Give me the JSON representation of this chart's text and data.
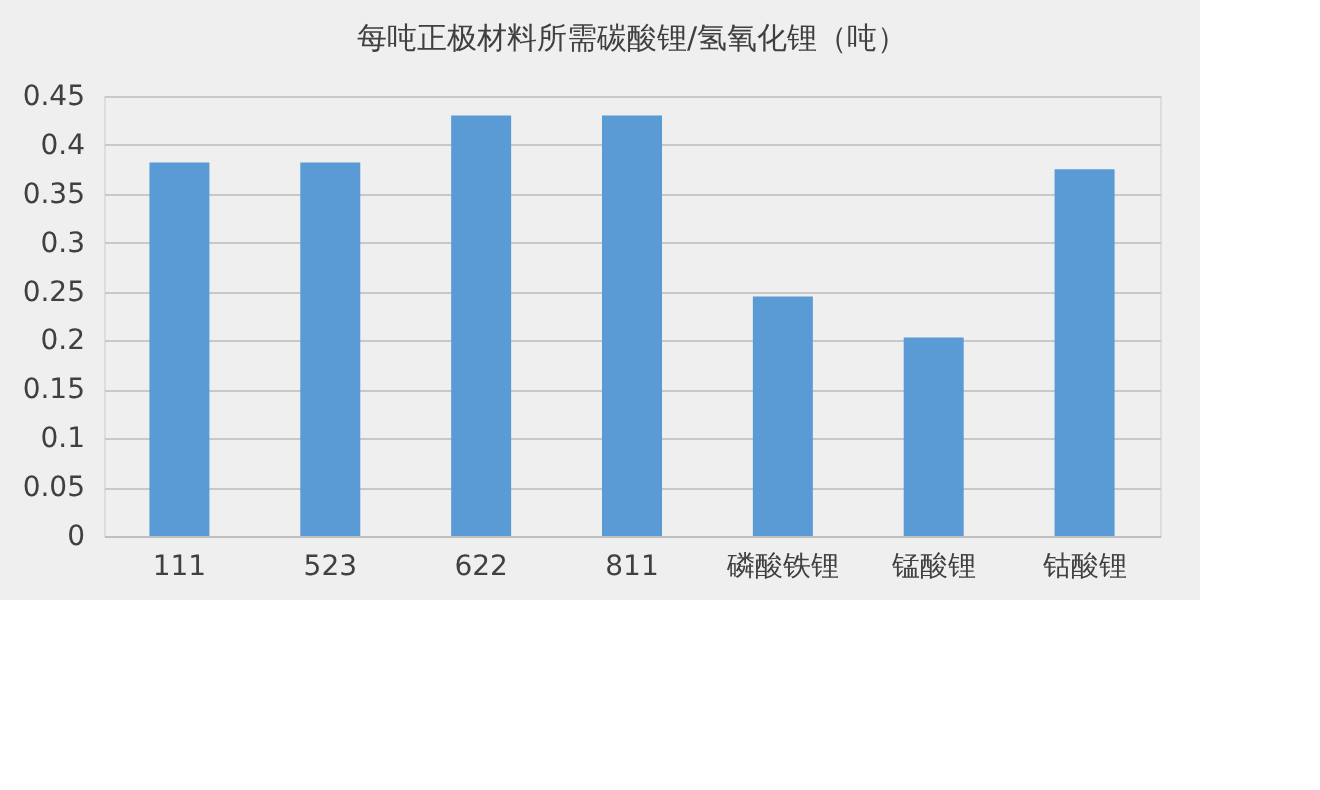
{
  "chart_data": {
    "type": "bar",
    "title": "每吨正极材料所需碳酸锂/氢氧化锂（吨）",
    "categories": [
      "111",
      "523",
      "622",
      "811",
      "磷酸铁锂",
      "锰酸锂",
      "钴酸锂"
    ],
    "values": [
      0.382,
      0.382,
      0.43,
      0.43,
      0.245,
      0.203,
      0.375
    ],
    "color": "#5b9bd5",
    "ylim": [
      0,
      0.45
    ],
    "yticks": [
      0,
      0.05,
      0.1,
      0.15,
      0.2,
      0.25,
      0.3,
      0.35,
      0.4,
      0.45
    ],
    "grid": "y"
  }
}
